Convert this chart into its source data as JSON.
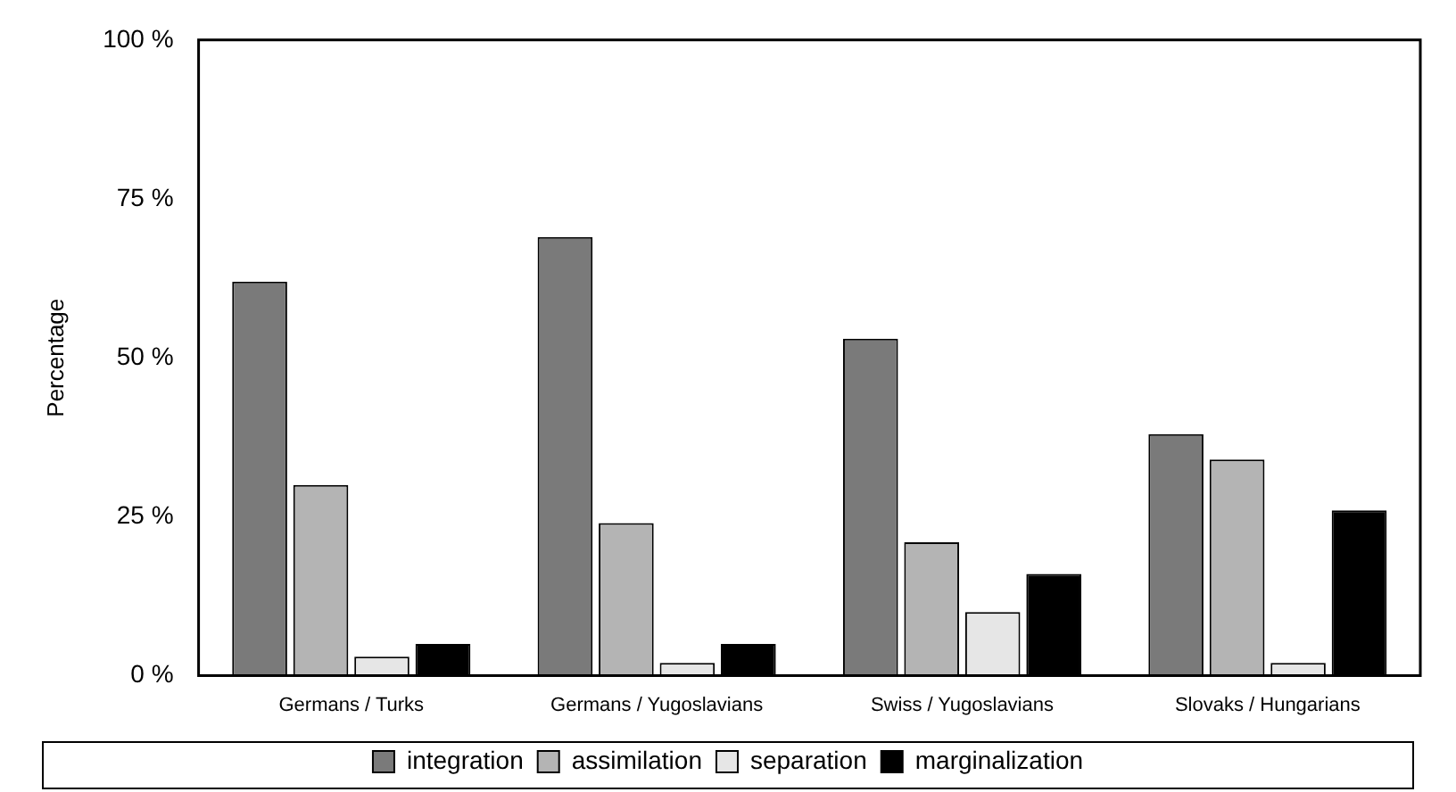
{
  "chart_data": {
    "type": "bar",
    "ylabel": "Percentage",
    "categories": [
      "Germans / Turks",
      "Germans / Yugoslavians",
      "Swiss / Yugoslavians",
      "Slovaks / Hungarians"
    ],
    "series": [
      {
        "name": "integration",
        "color": "#7a7a7a",
        "values": [
          62,
          69,
          53,
          38
        ]
      },
      {
        "name": "assimilation",
        "color": "#b4b4b4",
        "values": [
          30,
          24,
          21,
          34
        ]
      },
      {
        "name": "separation",
        "color": "#e6e6e6",
        "values": [
          3,
          2,
          10,
          2
        ]
      },
      {
        "name": "marginalization",
        "color": "#000000",
        "values": [
          5,
          5,
          16,
          26
        ]
      }
    ],
    "ylim": [
      0,
      100
    ],
    "yticks": [
      {
        "value": 0,
        "label": "0 %"
      },
      {
        "value": 25,
        "label": "25 %"
      },
      {
        "value": 50,
        "label": "50 %"
      },
      {
        "value": 75,
        "label": "75 %"
      },
      {
        "value": 100,
        "label": "100 %"
      }
    ],
    "grid": false,
    "legend": "bottom"
  }
}
